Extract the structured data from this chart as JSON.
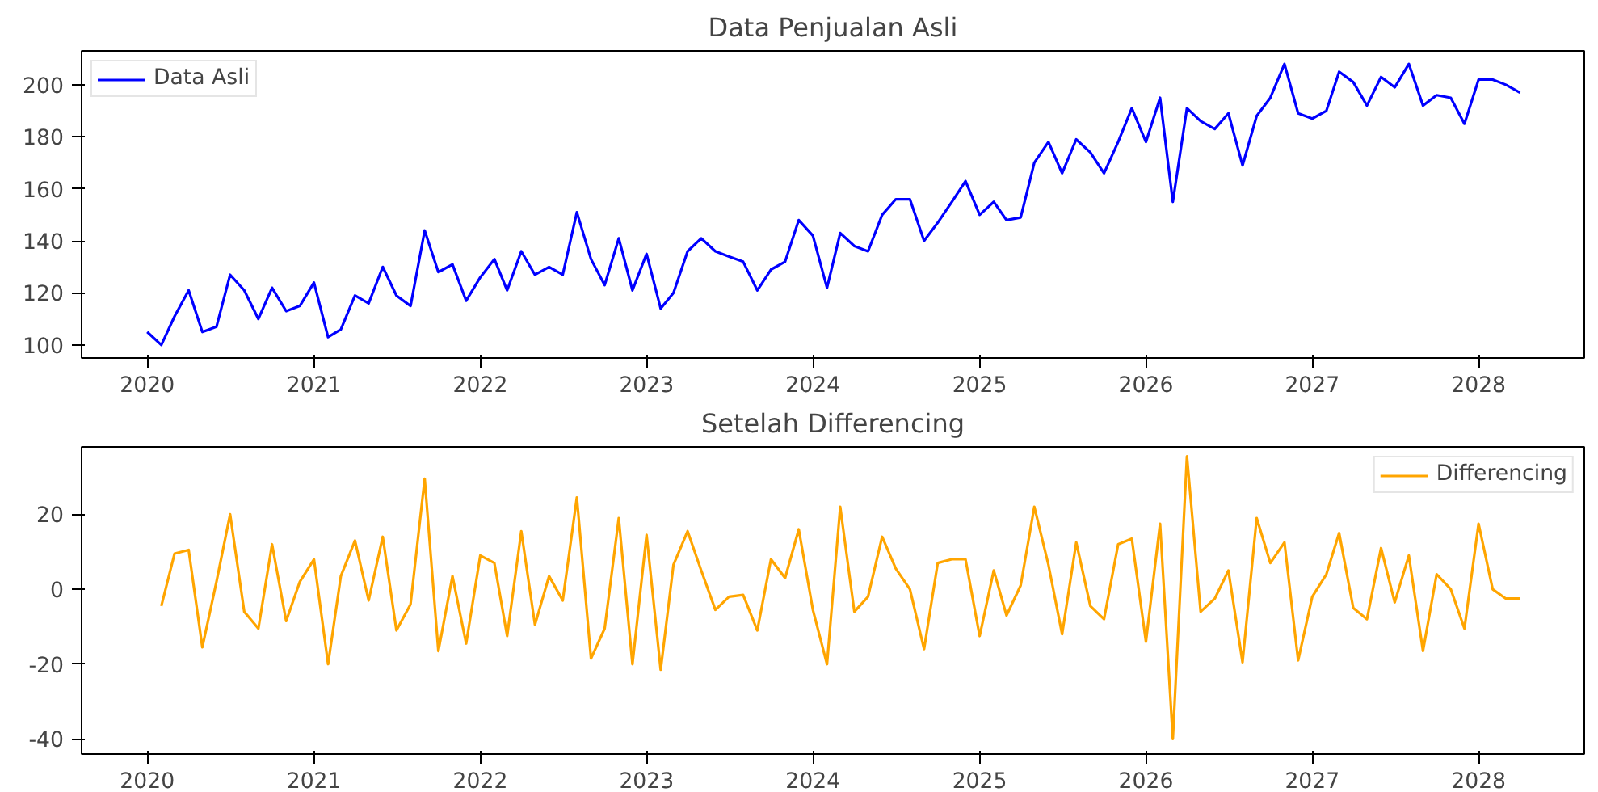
{
  "chart_data": [
    {
      "type": "line",
      "title": "Data Penjualan Asli",
      "x": [
        "2020-01",
        "2020-02",
        "2020-03",
        "2020-04",
        "2020-05",
        "2020-06",
        "2020-07",
        "2020-08",
        "2020-09",
        "2020-10",
        "2020-11",
        "2020-12",
        "2021-01",
        "2021-02",
        "2021-03",
        "2021-04",
        "2021-05",
        "2021-06",
        "2021-07",
        "2021-08",
        "2021-09",
        "2021-10",
        "2021-11",
        "2021-12",
        "2022-01",
        "2022-02",
        "2022-03",
        "2022-04",
        "2022-05",
        "2022-06",
        "2022-07",
        "2022-08",
        "2022-09",
        "2022-10",
        "2022-11",
        "2022-12",
        "2023-01",
        "2023-02",
        "2023-03",
        "2023-04",
        "2023-05",
        "2023-06",
        "2023-07",
        "2023-08",
        "2023-09",
        "2023-10",
        "2023-11",
        "2023-12",
        "2024-01",
        "2024-02",
        "2024-03",
        "2024-04",
        "2024-05",
        "2024-06",
        "2024-07",
        "2024-08",
        "2024-09",
        "2024-10",
        "2024-11",
        "2024-12",
        "2025-01",
        "2025-02",
        "2025-03",
        "2025-04",
        "2025-05",
        "2025-06",
        "2025-07",
        "2025-08",
        "2025-09",
        "2025-10",
        "2025-11",
        "2025-12",
        "2026-01",
        "2026-02",
        "2026-03",
        "2026-04",
        "2026-05",
        "2026-06",
        "2026-07",
        "2026-08",
        "2026-09",
        "2026-10",
        "2026-11",
        "2026-12",
        "2027-01",
        "2027-02",
        "2027-03",
        "2027-04",
        "2027-05",
        "2027-06",
        "2027-07",
        "2027-08",
        "2027-09",
        "2027-10",
        "2027-11",
        "2027-12",
        "2028-01",
        "2028-02",
        "2028-03",
        "2028-04"
      ],
      "series": [
        {
          "name": "Data Asli",
          "color": "#0000ff",
          "values": [
            105,
            100,
            111,
            121,
            105,
            107,
            127,
            121,
            110,
            122,
            113,
            115,
            124,
            103,
            106,
            119,
            116,
            130,
            119,
            115,
            144,
            128,
            131,
            117,
            126,
            133,
            121,
            136,
            127,
            130,
            127,
            151,
            133,
            123,
            141,
            121,
            135,
            114,
            120,
            136,
            141,
            136,
            134,
            132,
            121,
            129,
            132,
            148,
            142,
            122,
            143,
            138,
            136,
            150,
            156,
            156,
            140,
            147,
            155,
            163,
            150,
            155,
            148,
            149,
            170,
            178,
            166,
            179,
            174,
            166,
            178,
            191,
            178,
            195,
            155,
            191,
            186,
            183,
            189,
            169,
            188,
            195,
            208,
            189,
            187,
            190,
            205,
            201,
            192,
            203,
            199,
            208,
            192,
            196,
            195,
            185,
            202,
            202,
            200,
            197
          ]
        }
      ],
      "xlim": [
        "2019-08-10",
        "2028-08-20"
      ],
      "xticks": [
        {
          "value": "2020-01-01",
          "label": "2020"
        },
        {
          "value": "2021-01-01",
          "label": "2021"
        },
        {
          "value": "2022-01-01",
          "label": "2022"
        },
        {
          "value": "2023-01-01",
          "label": "2023"
        },
        {
          "value": "2024-01-01",
          "label": "2024"
        },
        {
          "value": "2025-01-01",
          "label": "2025"
        },
        {
          "value": "2026-01-01",
          "label": "2026"
        },
        {
          "value": "2027-01-01",
          "label": "2027"
        },
        {
          "value": "2028-01-01",
          "label": "2028"
        }
      ],
      "ylim": [
        95,
        213
      ],
      "yticks": [
        100,
        120,
        140,
        160,
        180,
        200
      ],
      "legend": "top left",
      "grid": false
    },
    {
      "type": "line",
      "title": "Setelah Differencing",
      "x": [
        "2020-02",
        "2020-03",
        "2020-04",
        "2020-05",
        "2020-06",
        "2020-07",
        "2020-08",
        "2020-09",
        "2020-10",
        "2020-11",
        "2020-12",
        "2021-01",
        "2021-02",
        "2021-03",
        "2021-04",
        "2021-05",
        "2021-06",
        "2021-07",
        "2021-08",
        "2021-09",
        "2021-10",
        "2021-11",
        "2021-12",
        "2022-01",
        "2022-02",
        "2022-03",
        "2022-04",
        "2022-05",
        "2022-06",
        "2022-07",
        "2022-08",
        "2022-09",
        "2022-10",
        "2022-11",
        "2022-12",
        "2023-01",
        "2023-02",
        "2023-03",
        "2023-04",
        "2023-05",
        "2023-06",
        "2023-07",
        "2023-08",
        "2023-09",
        "2023-10",
        "2023-11",
        "2023-12",
        "2024-01",
        "2024-02",
        "2024-03",
        "2024-04",
        "2024-05",
        "2024-06",
        "2024-07",
        "2024-08",
        "2024-09",
        "2024-10",
        "2024-11",
        "2024-12",
        "2025-01",
        "2025-02",
        "2025-03",
        "2025-04",
        "2025-05",
        "2025-06",
        "2025-07",
        "2025-08",
        "2025-09",
        "2025-10",
        "2025-11",
        "2025-12",
        "2026-01",
        "2026-02",
        "2026-03",
        "2026-04",
        "2026-05",
        "2026-06",
        "2026-07",
        "2026-08",
        "2026-09",
        "2026-10",
        "2026-11",
        "2026-12",
        "2027-01",
        "2027-02",
        "2027-03",
        "2027-04",
        "2027-05",
        "2027-06",
        "2027-07",
        "2027-08",
        "2027-09",
        "2027-10",
        "2027-11",
        "2027-12",
        "2028-01",
        "2028-02",
        "2028-03",
        "2028-04"
      ],
      "series": [
        {
          "name": "Differencing",
          "color": "#ffa500",
          "values": [
            -4.5,
            9.5,
            10.5,
            -15.5,
            2,
            20,
            -6,
            -10.5,
            12,
            -8.5,
            2,
            8,
            -20,
            3.5,
            13,
            -3,
            14,
            -11,
            -4,
            29.5,
            -16.5,
            3.5,
            -14.5,
            9,
            7,
            -12.5,
            15.5,
            -9.5,
            3.5,
            -3,
            24.5,
            -18.5,
            -10.5,
            19,
            -20,
            14.5,
            -21.5,
            6.5,
            15.5,
            5,
            -5.5,
            -2,
            -1.5,
            -11,
            8,
            3,
            16,
            -5.5,
            -20,
            22,
            -6,
            -2,
            14,
            5.5,
            0,
            -16,
            7,
            8,
            8,
            -12.5,
            5,
            -7,
            1,
            22,
            6.5,
            -12,
            12.5,
            -4.5,
            -8,
            12,
            13.5,
            -14,
            17.5,
            -40,
            35.5,
            -6,
            -2.5,
            5,
            -19.5,
            19,
            7,
            12.5,
            -19,
            -2,
            4,
            15,
            -5,
            -8,
            11,
            -3.5,
            9,
            -16.5,
            4,
            0,
            -10.5,
            17.5,
            0,
            -2.5,
            -2.5
          ]
        }
      ],
      "xlim": [
        "2019-08-10",
        "2028-08-20"
      ],
      "xticks": [
        {
          "value": "2020-01-01",
          "label": "2020"
        },
        {
          "value": "2021-01-01",
          "label": "2021"
        },
        {
          "value": "2022-01-01",
          "label": "2022"
        },
        {
          "value": "2023-01-01",
          "label": "2023"
        },
        {
          "value": "2024-01-01",
          "label": "2024"
        },
        {
          "value": "2025-01-01",
          "label": "2025"
        },
        {
          "value": "2026-01-01",
          "label": "2026"
        },
        {
          "value": "2027-01-01",
          "label": "2027"
        },
        {
          "value": "2028-01-01",
          "label": "2028"
        }
      ],
      "ylim": [
        -44,
        38
      ],
      "yticks": [
        -40,
        -20,
        0,
        20
      ],
      "legend": "top right",
      "grid": false
    }
  ]
}
